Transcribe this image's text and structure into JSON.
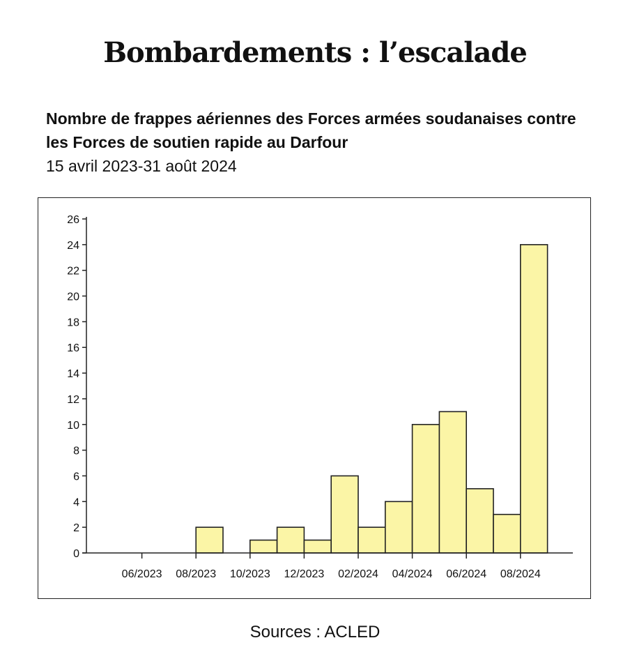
{
  "title": "Bombardements : l’escalade",
  "subtitle": "Nombre de frappes aériennes des Forces armées soudanaises contre les Forces de soutien rapide au Darfour",
  "date_range": "15 avril 2023-31 août 2024",
  "source": "Sources : ACLED",
  "colors": {
    "bar_fill": "#fbf5a6",
    "bar_stroke": "#222222",
    "axis": "#222222"
  },
  "chart_data": {
    "type": "bar",
    "title": "",
    "xlabel": "",
    "ylabel": "",
    "categories": [
      "04/2023",
      "05/2023",
      "06/2023",
      "07/2023",
      "08/2023",
      "09/2023",
      "10/2023",
      "11/2023",
      "12/2023",
      "01/2024",
      "02/2024",
      "03/2024",
      "04/2024",
      "05/2024",
      "06/2024",
      "07/2024",
      "08/2024"
    ],
    "values": [
      0,
      0,
      0,
      0,
      2,
      0,
      1,
      2,
      1,
      6,
      2,
      4,
      10,
      11,
      5,
      3,
      24
    ],
    "xtick_labels": [
      "06/2023",
      "08/2023",
      "10/2023",
      "12/2023",
      "02/2024",
      "04/2024",
      "06/2024",
      "08/2024"
    ],
    "ylim": [
      0,
      26
    ],
    "yticks": [
      0,
      2,
      4,
      6,
      8,
      10,
      12,
      14,
      16,
      18,
      20,
      22,
      24,
      26
    ],
    "grid": false,
    "legend": "none"
  }
}
